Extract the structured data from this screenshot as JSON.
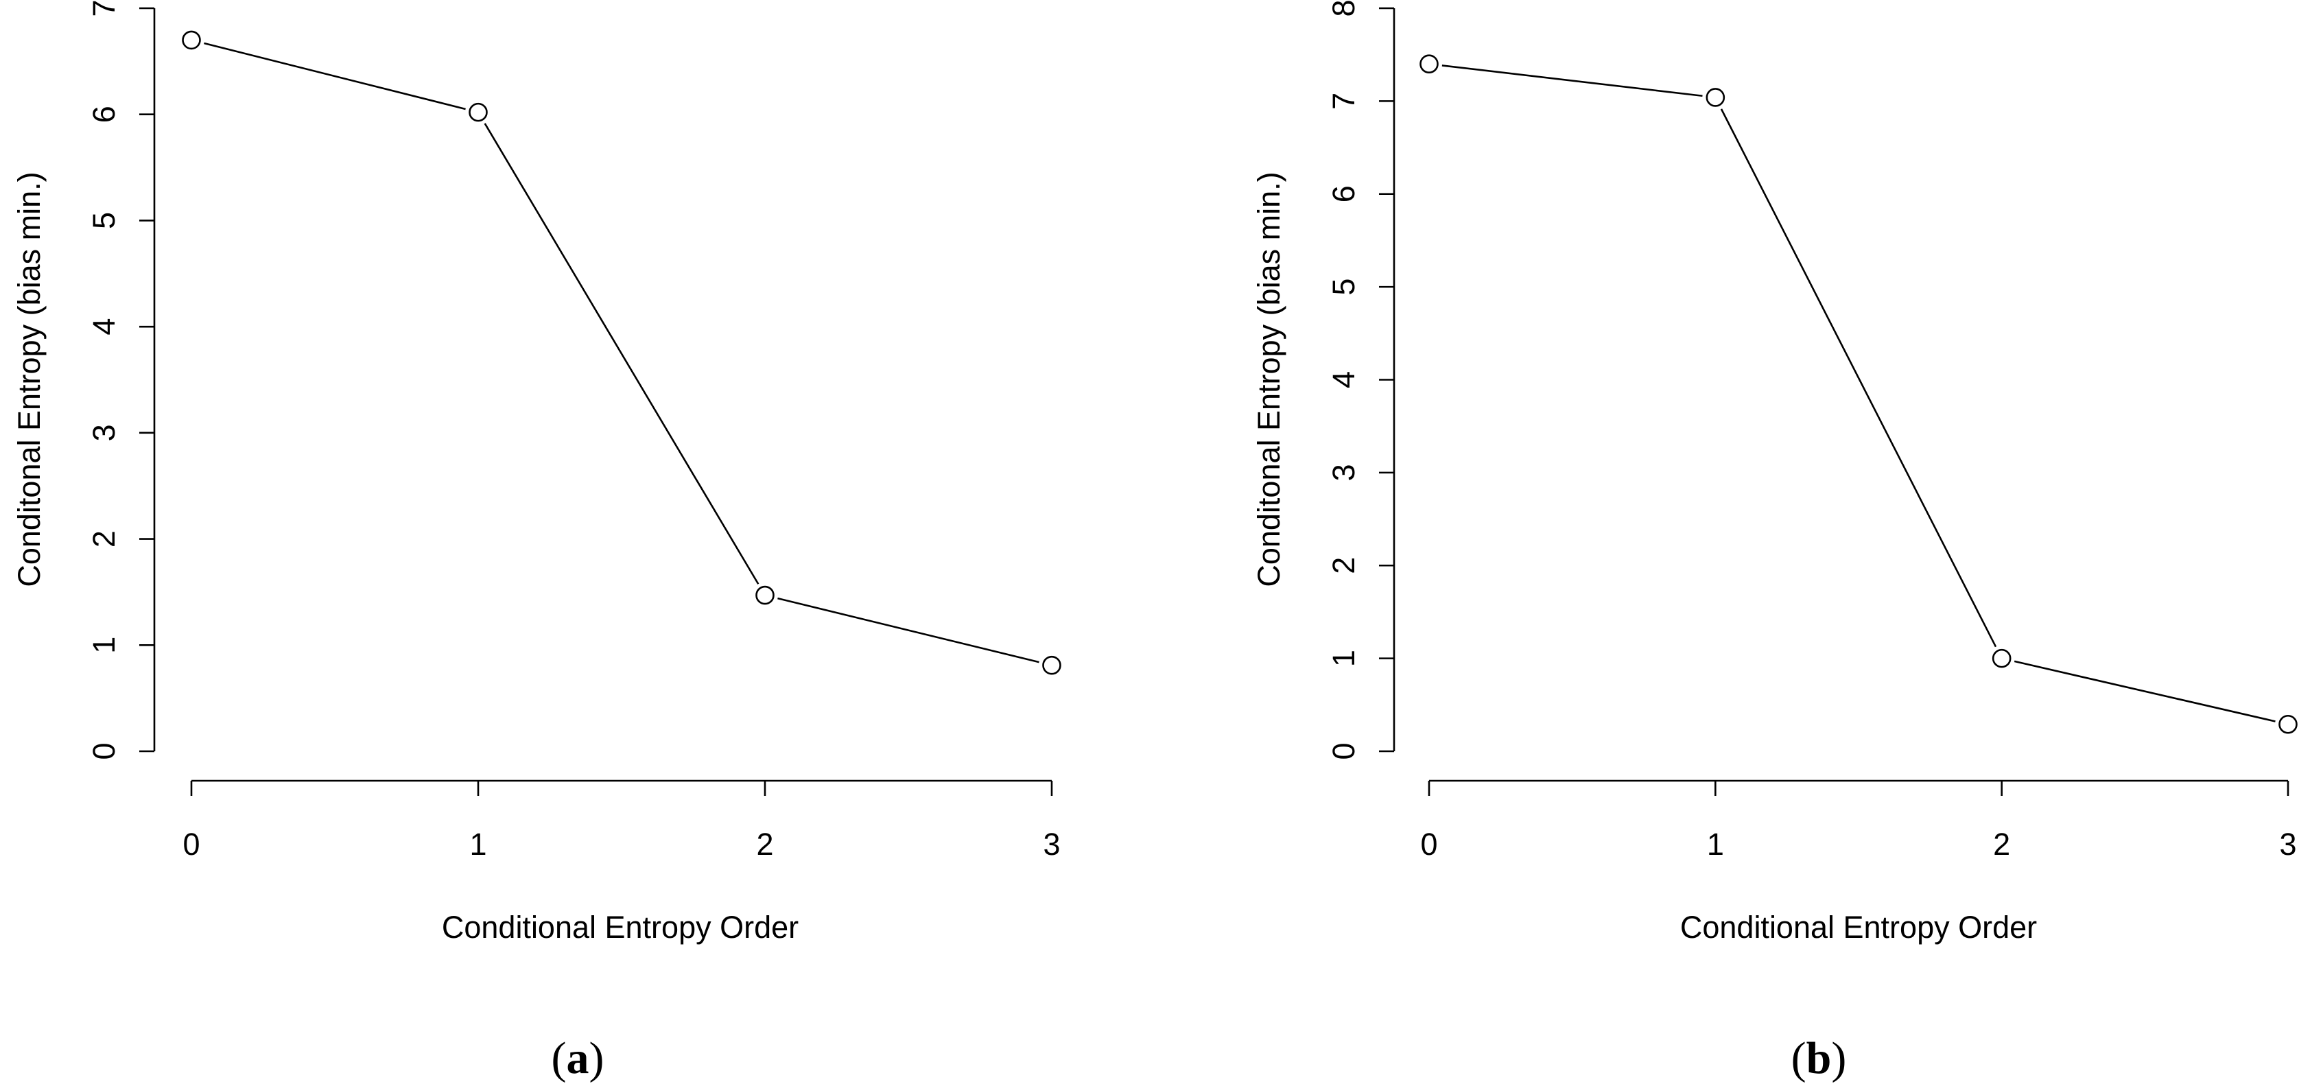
{
  "chart_data": [
    {
      "type": "line",
      "panel_label": "a",
      "xlabel": "Conditional Entropy Order",
      "ylabel": "Conditonal Entropy (bias min.)",
      "x": [
        0,
        1,
        2,
        3
      ],
      "x_tick_labels": [
        "0",
        "1",
        "2",
        "3"
      ],
      "xlim": [
        0,
        3
      ],
      "y_tick_labels": [
        "0",
        "1",
        "2",
        "3",
        "4",
        "5",
        "6",
        "7"
      ],
      "ylim": [
        0,
        7
      ],
      "series": [
        {
          "values": [
            6.7,
            6.02,
            1.47,
            0.81
          ],
          "marker": "open-circle"
        }
      ],
      "grid": false,
      "legend": "none"
    },
    {
      "type": "line",
      "panel_label": "b",
      "xlabel": "Conditional Entropy Order",
      "ylabel": "Conditonal Entropy (bias min.)",
      "x": [
        0,
        1,
        2,
        3
      ],
      "x_tick_labels": [
        "0",
        "1",
        "2",
        "3"
      ],
      "xlim": [
        0,
        3
      ],
      "y_tick_labels": [
        "0",
        "1",
        "2",
        "3",
        "4",
        "5",
        "6",
        "7",
        "8"
      ],
      "ylim": [
        0,
        8
      ],
      "series": [
        {
          "values": [
            7.4,
            7.04,
            1.0,
            0.29
          ],
          "marker": "open-circle"
        }
      ],
      "grid": false,
      "legend": "none"
    }
  ],
  "colors": {
    "line": "#000000",
    "marker_fill": "#ffffff",
    "background": "#ffffff"
  }
}
